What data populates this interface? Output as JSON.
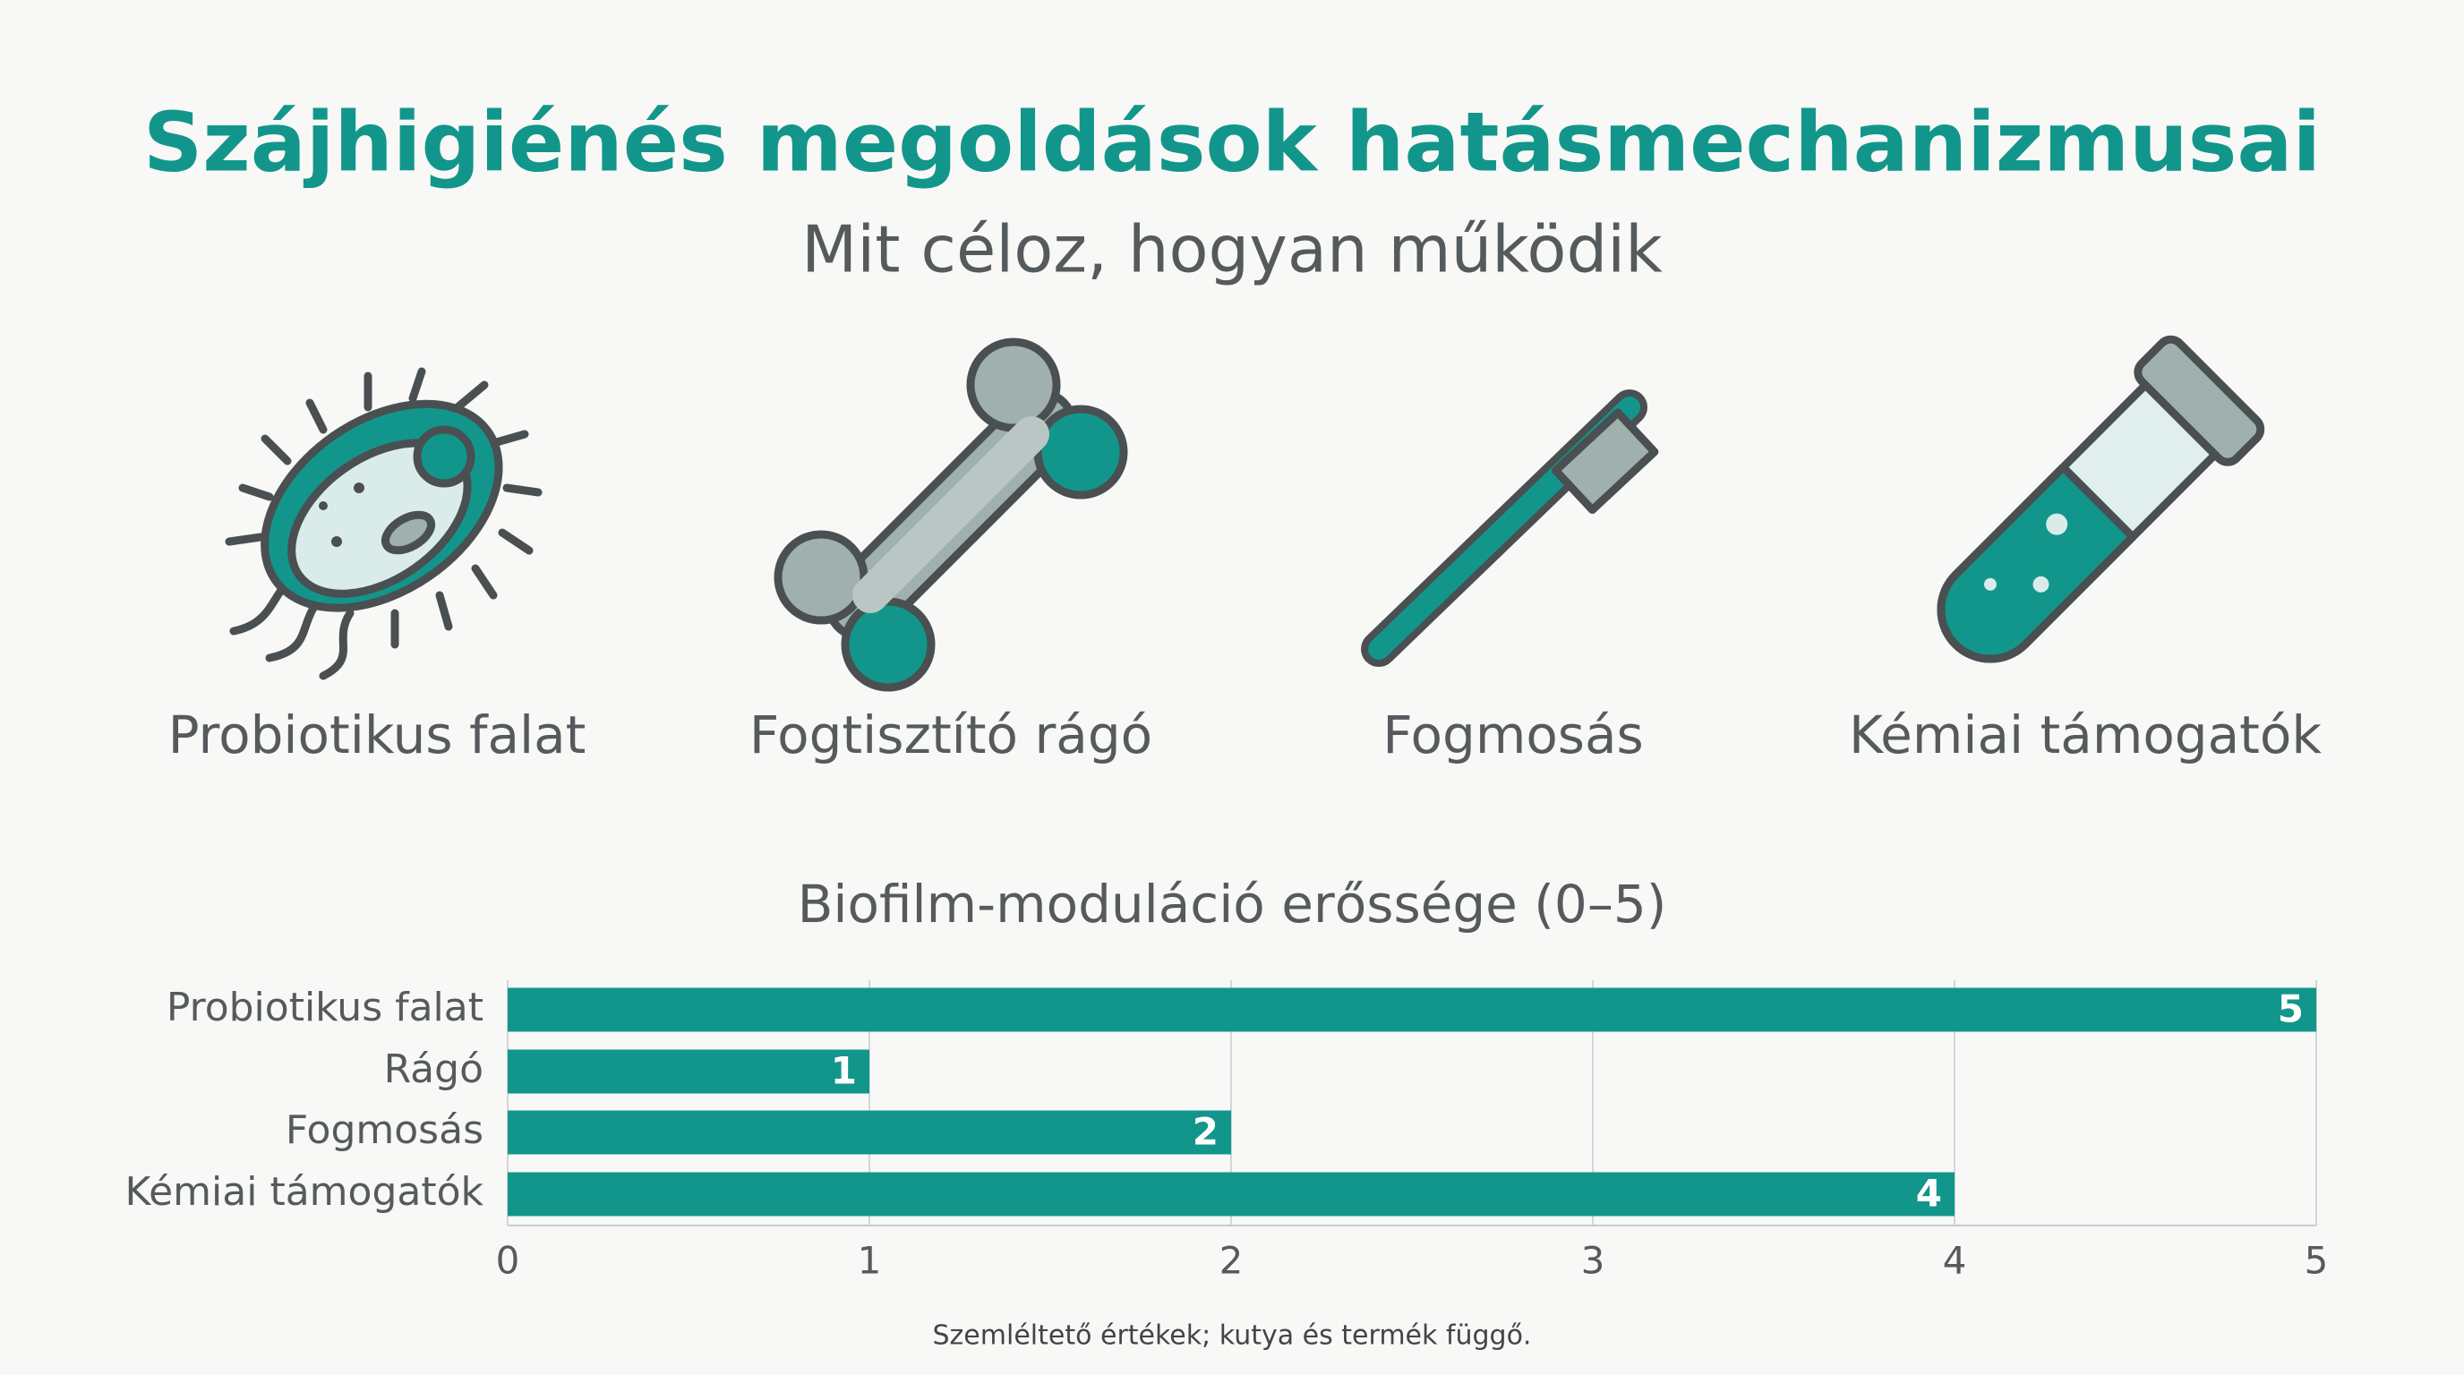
{
  "header": {
    "title": "Szájhigiénés megoldások hatásmechanizmusai",
    "subtitle": "Mit céloz, hogyan működik"
  },
  "icons": [
    {
      "label": "Probiotikus falat"
    },
    {
      "label": "Fogtisztító rágó"
    },
    {
      "label": "Fogmosás"
    },
    {
      "label": "Kémiai támogatók"
    }
  ],
  "chart_data": {
    "type": "bar",
    "orientation": "horizontal",
    "title": "Biofilm-moduláció erőssége (0–5)",
    "categories": [
      "Probiotikus falat",
      "Rágó",
      "Fogmosás",
      "Kémiai támogatók"
    ],
    "values": [
      5,
      1,
      2,
      4
    ],
    "color": "#12968b",
    "xlim": [
      0,
      5
    ],
    "xticks": [
      0,
      1,
      2,
      3,
      4,
      5
    ],
    "grid": true
  },
  "footnote": "Szemléltető értékek; kutya és termék függő."
}
